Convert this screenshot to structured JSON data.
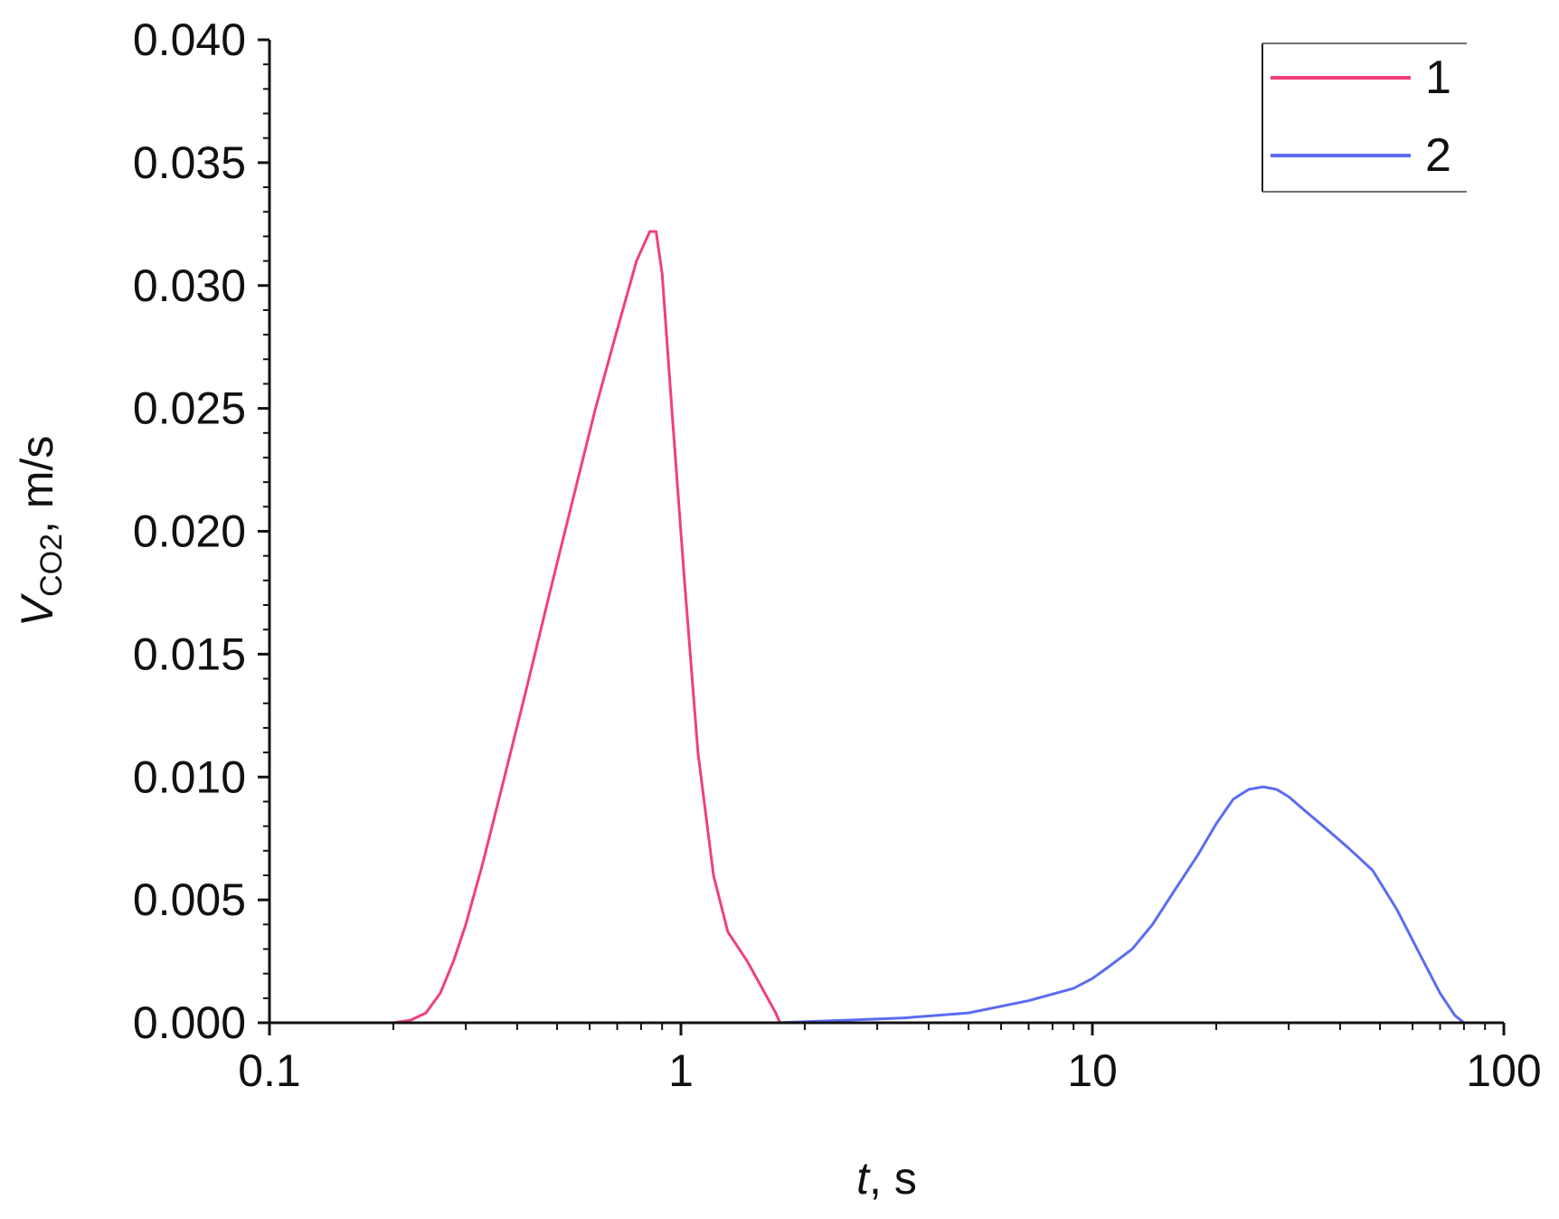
{
  "chart_data": {
    "type": "line",
    "xlabel": {
      "italic": "t",
      "rest": ", s"
    },
    "ylabel": {
      "main": "V",
      "sub": "CO2",
      "rest": ", m/s"
    },
    "x_scale": "log",
    "xlim": [
      0.1,
      100
    ],
    "ylim": [
      0,
      0.04
    ],
    "x_ticks": [
      0.1,
      1,
      10,
      100
    ],
    "x_tick_labels": [
      "0.1",
      "1",
      "10",
      "100"
    ],
    "y_ticks": [
      0,
      0.005,
      0.01,
      0.015,
      0.02,
      0.025,
      0.03,
      0.035,
      0.04
    ],
    "y_tick_labels": [
      "0.000",
      "0.005",
      "0.010",
      "0.015",
      "0.020",
      "0.025",
      "0.030",
      "0.035",
      "0.040"
    ],
    "grid": false,
    "legend_position": "top-right",
    "series": [
      {
        "name": "1",
        "color": "#F0407A",
        "x": [
          0.1,
          0.2,
          0.22,
          0.24,
          0.26,
          0.28,
          0.3,
          0.33,
          0.37,
          0.42,
          0.48,
          0.55,
          0.62,
          0.7,
          0.78,
          0.84,
          0.87,
          0.9,
          0.95,
          1.02,
          1.1,
          1.2,
          1.3,
          1.45,
          1.6,
          1.7,
          1.74
        ],
        "y": [
          0,
          0,
          0.0001,
          0.0004,
          0.0012,
          0.0025,
          0.004,
          0.0065,
          0.0098,
          0.0135,
          0.0175,
          0.0215,
          0.025,
          0.0282,
          0.031,
          0.0322,
          0.0322,
          0.0305,
          0.025,
          0.018,
          0.011,
          0.006,
          0.0037,
          0.0025,
          0.0012,
          0.0004,
          0
        ]
      },
      {
        "name": "2",
        "color": "#5B6CF2",
        "x": [
          1.7,
          2.5,
          3.5,
          5,
          7,
          9,
          10,
          11,
          12.5,
          14,
          16,
          18,
          20,
          22,
          24,
          26,
          28,
          30,
          33,
          37,
          42,
          48,
          55,
          62,
          70,
          76,
          80
        ],
        "y": [
          0,
          0.0001,
          0.0002,
          0.0004,
          0.0009,
          0.0014,
          0.0018,
          0.0023,
          0.003,
          0.004,
          0.0055,
          0.0068,
          0.0081,
          0.0091,
          0.0095,
          0.0096,
          0.0095,
          0.0092,
          0.0086,
          0.0079,
          0.0071,
          0.0062,
          0.0046,
          0.0029,
          0.0012,
          0.0003,
          0
        ]
      }
    ]
  }
}
